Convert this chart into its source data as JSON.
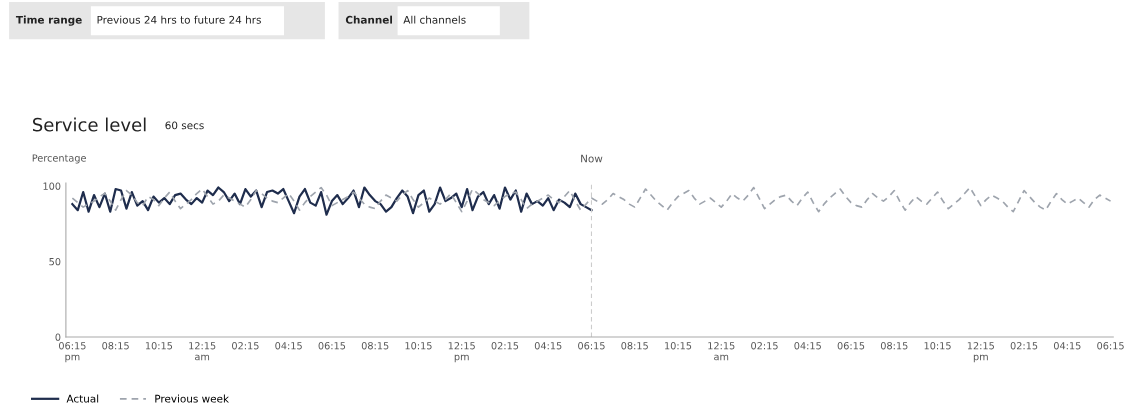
{
  "chart_data": {
    "type": "line",
    "title": "Service level",
    "ylabel": "Percentage",
    "annotations": [
      "Time range",
      "Previous 24 hrs to future 24 hrs",
      "Channel",
      "All channels",
      "60 secs",
      "Now"
    ],
    "categories": [
      "06:15\npm",
      null,
      null,
      null,
      null,
      null,
      null,
      null,
      "08:15",
      null,
      null,
      null,
      null,
      null,
      null,
      null,
      "10:15",
      null,
      null,
      null,
      null,
      null,
      null,
      null,
      "12:15\nam",
      null,
      null,
      null,
      null,
      null,
      null,
      null,
      "02:15",
      null,
      null,
      null,
      null,
      null,
      null,
      null,
      "04:15",
      null,
      null,
      null,
      null,
      null,
      null,
      null,
      "06:15",
      null,
      null,
      null,
      null,
      null,
      null,
      null,
      "08:15",
      null,
      null,
      null,
      null,
      null,
      null,
      null,
      "10:15",
      null,
      null,
      null,
      null,
      null,
      null,
      null,
      "12:15\npm",
      null,
      null,
      null,
      null,
      null,
      null,
      null,
      "02:15",
      null,
      null,
      null,
      null,
      null,
      null,
      null,
      "04:15",
      null,
      null,
      null,
      null,
      null,
      null,
      null,
      "06:15",
      null,
      null,
      null,
      null,
      null,
      null,
      null,
      "08:15",
      null,
      null,
      null,
      null,
      null,
      null,
      null,
      "10:15",
      null,
      null,
      null,
      null,
      null,
      null,
      null,
      "12:15\nam",
      null,
      null,
      null,
      null,
      null,
      null,
      null,
      "02:15",
      null,
      null,
      null,
      null,
      null,
      null,
      null,
      "04:15",
      null,
      null,
      null,
      null,
      null,
      null,
      null,
      "06:15",
      null,
      null,
      null,
      null,
      null,
      null,
      null,
      "08:15",
      null,
      null,
      null,
      null,
      null,
      null,
      null,
      "10:15",
      null,
      null,
      null,
      null,
      null,
      null,
      null,
      "12:15\npm",
      null,
      null,
      null,
      null,
      null,
      null,
      null,
      "02:15",
      null,
      null,
      null,
      null,
      null,
      null,
      null,
      "04:15",
      null,
      null,
      null,
      null,
      null,
      null,
      null,
      "06:15"
    ],
    "series": [
      {
        "name": "Actual",
        "color": "#1f2d4d",
        "line_style": "solid",
        "values": [
          88,
          84,
          96,
          83,
          94,
          86,
          95,
          83,
          98,
          97,
          85,
          96,
          87,
          90,
          84,
          93,
          89,
          92,
          88,
          94,
          95,
          91,
          88,
          92,
          89,
          97,
          94,
          99,
          96,
          90,
          95,
          88,
          98,
          93,
          97,
          86,
          96,
          97,
          95,
          98,
          90,
          82,
          93,
          98,
          89,
          87,
          96,
          81,
          90,
          94,
          88,
          92,
          97,
          86,
          99,
          94,
          90,
          88,
          83,
          86,
          92,
          97,
          93,
          82,
          94,
          97,
          83,
          88,
          99,
          90,
          92,
          95,
          86,
          98,
          84,
          93,
          96,
          88,
          94,
          85,
          99,
          91,
          97,
          83,
          95,
          88,
          90,
          87,
          92,
          84,
          91,
          89,
          86,
          95,
          88,
          86,
          84,
          null,
          null,
          null,
          null,
          null,
          null,
          null,
          null,
          null,
          null,
          null,
          null,
          null,
          null,
          null,
          null,
          null,
          null,
          null,
          null,
          null,
          null,
          null,
          null,
          null,
          null,
          null,
          null,
          null,
          null,
          null,
          null,
          null,
          null,
          null,
          null,
          null,
          null,
          null,
          null,
          null,
          null,
          null,
          null,
          null,
          null,
          null,
          null,
          null,
          null,
          null,
          null,
          null,
          null,
          null,
          null,
          null,
          null,
          null,
          null,
          null,
          null,
          null,
          null,
          null,
          null,
          null,
          null,
          null,
          null,
          null,
          null,
          null,
          null,
          null,
          null,
          null,
          null,
          null,
          null,
          null,
          null,
          null,
          null,
          null,
          null,
          null,
          null,
          null,
          null,
          null,
          null,
          null,
          null,
          null,
          null
        ]
      },
      {
        "name": "Previous week",
        "color": "#9ea4ad",
        "line_style": "dashed",
        "values": [
          92,
          89,
          86,
          88,
          90,
          93,
          95,
          90,
          84,
          91,
          97,
          94,
          89,
          87,
          93,
          91,
          87,
          92,
          96,
          90,
          85,
          88,
          91,
          95,
          98,
          93,
          88,
          90,
          94,
          92,
          90,
          88,
          86,
          91,
          97,
          95,
          92,
          90,
          89,
          92,
          95,
          90,
          84,
          89,
          93,
          96,
          99,
          94,
          87,
          89,
          91,
          93,
          96,
          92,
          88,
          86,
          85,
          90,
          94,
          92,
          90,
          94,
          97,
          91,
          86,
          89,
          92,
          90,
          88,
          91,
          95,
          89,
          83,
          90,
          98,
          95,
          91,
          89,
          87,
          90,
          93,
          95,
          96,
          91,
          85,
          88,
          90,
          92,
          94,
          91,
          89,
          93,
          97,
          90,
          84,
          88,
          92,
          90,
          88,
          91,
          95,
          93,
          91,
          88,
          86,
          92,
          98,
          94,
          90,
          87,
          84,
          89,
          93,
          95,
          97,
          92,
          88,
          90,
          92,
          89,
          86,
          90,
          95,
          92,
          90,
          94,
          99,
          92,
          85,
          88,
          91,
          93,
          94,
          90,
          87,
          92,
          96,
          89,
          83,
          88,
          92,
          95,
          98,
          93,
          89,
          87,
          86,
          91,
          95,
          92,
          90,
          93,
          97,
          90,
          84,
          89,
          93,
          90,
          88,
          92,
          96,
          90,
          85,
          88,
          91,
          95,
          99,
          93,
          87,
          91,
          94,
          92,
          90,
          86,
          83,
          90,
          97,
          93,
          89,
          86,
          84,
          90,
          95,
          91,
          88,
          90,
          92,
          89,
          86,
          91,
          94,
          92,
          90
        ]
      }
    ],
    "ylim": [
      0,
      102
    ],
    "yticks": [
      0,
      50,
      100
    ],
    "grid": false,
    "legend": "bottom left",
    "marker": "none"
  }
}
